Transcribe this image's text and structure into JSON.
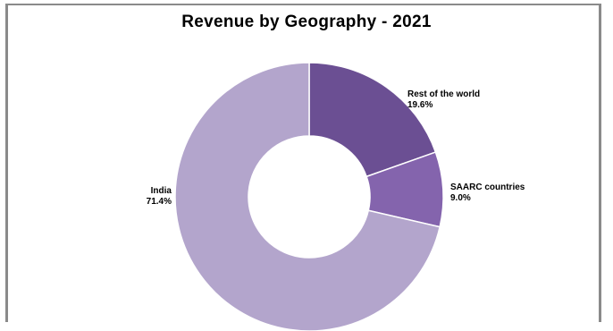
{
  "chart_data": {
    "type": "pie",
    "variant": "donut",
    "title": "Revenue by Geography - 2021",
    "slices": [
      {
        "label": "Rest of the world",
        "value": 19.6,
        "value_label": "19.6%",
        "color": "#6b4f93"
      },
      {
        "label": "SAARC countries",
        "value": 9.0,
        "value_label": "9.0%",
        "color": "#8464ad"
      },
      {
        "label": "India",
        "value": 71.4,
        "value_label": "71.4%",
        "color": "#b3a5cc"
      }
    ],
    "start_angle_deg": 0,
    "direction": "clockwise",
    "legend": "none",
    "data_labels": "outside"
  }
}
